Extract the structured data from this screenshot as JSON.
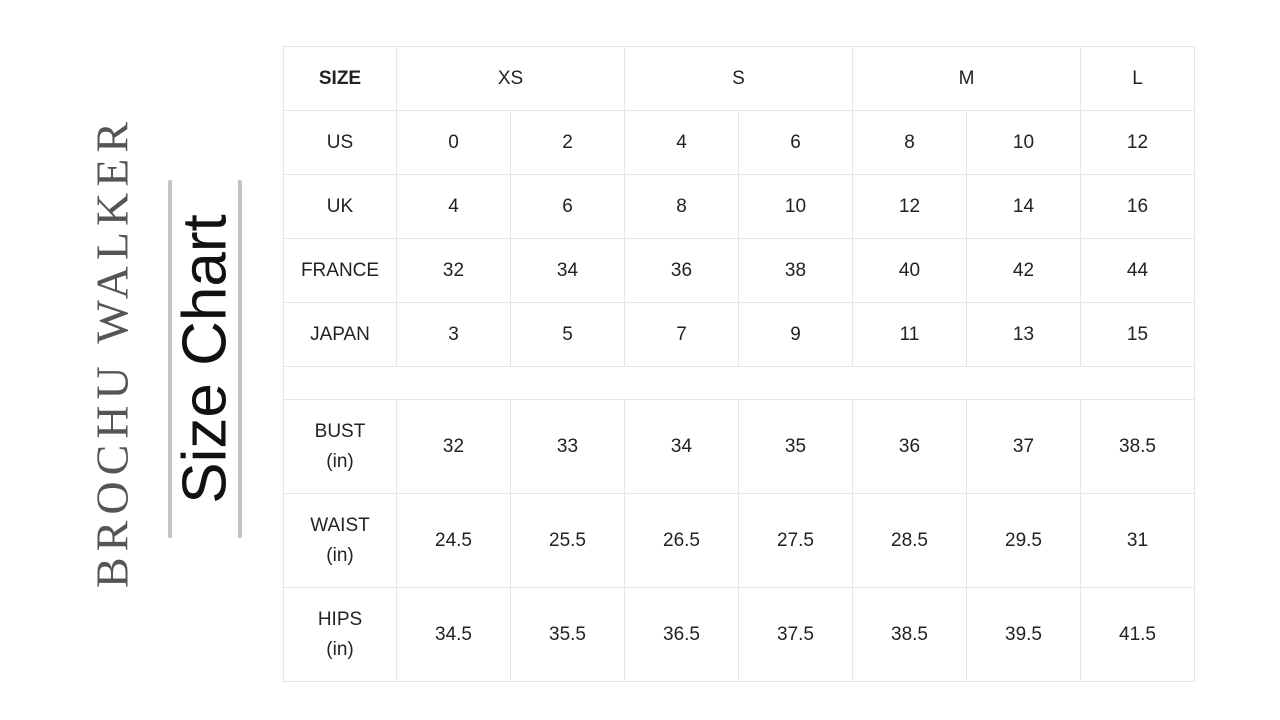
{
  "brand": "BROCHU WALKER",
  "title": "Size Chart",
  "table": {
    "header": {
      "label": "SIZE",
      "groups": [
        {
          "label": "XS",
          "span": 2
        },
        {
          "label": "S",
          "span": 2
        },
        {
          "label": "M",
          "span": 2
        },
        {
          "label": "L",
          "span": 1
        }
      ]
    },
    "conversion_rows": [
      {
        "label": "US",
        "values": [
          "0",
          "2",
          "4",
          "6",
          "8",
          "10",
          "12"
        ]
      },
      {
        "label": "UK",
        "values": [
          "4",
          "6",
          "8",
          "10",
          "12",
          "14",
          "16"
        ]
      },
      {
        "label": "FRANCE",
        "values": [
          "32",
          "34",
          "36",
          "38",
          "40",
          "42",
          "44"
        ]
      },
      {
        "label": "JAPAN",
        "values": [
          "3",
          "5",
          "7",
          "9",
          "11",
          "13",
          "15"
        ]
      }
    ],
    "measurement_rows": [
      {
        "label": "BUST",
        "unit": "(in)",
        "values": [
          "32",
          "33",
          "34",
          "35",
          "36",
          "37",
          "38.5"
        ]
      },
      {
        "label": "WAIST",
        "unit": "(in)",
        "values": [
          "24.5",
          "25.5",
          "26.5",
          "27.5",
          "28.5",
          "29.5",
          "31"
        ]
      },
      {
        "label": "HIPS",
        "unit": "(in)",
        "values": [
          "34.5",
          "35.5",
          "36.5",
          "37.5",
          "38.5",
          "39.5",
          "41.5"
        ]
      }
    ]
  }
}
